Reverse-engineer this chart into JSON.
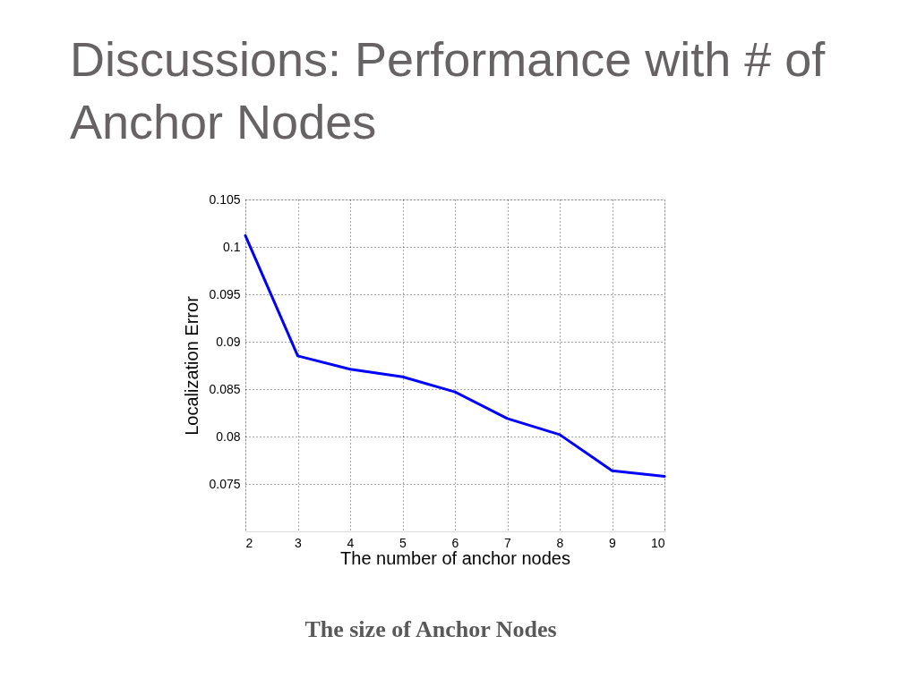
{
  "chart_data": {
    "type": "line",
    "title": "Discussions: Performance with # of Anchor Nodes",
    "xlabel": "The number of anchor nodes",
    "ylabel": "Localization Error",
    "x": [
      2,
      3,
      4,
      5,
      6,
      7,
      8,
      9,
      10
    ],
    "series": [
      {
        "color": "#0000ff",
        "values": [
          0.1012,
          0.0885,
          0.0871,
          0.0863,
          0.0847,
          0.0819,
          0.0802,
          0.0764,
          0.0758
        ]
      }
    ],
    "xlim": [
      2,
      10
    ],
    "ylim": [
      0.07,
      0.105
    ],
    "xticks": [
      2,
      3,
      4,
      5,
      6,
      7,
      8,
      9,
      10
    ],
    "yticks": [
      0.075,
      0.08,
      0.085,
      0.09,
      0.095,
      0.1,
      0.105
    ],
    "grid": true,
    "line_style": "solid",
    "annotations": [
      "The size of Anchor Nodes"
    ]
  }
}
